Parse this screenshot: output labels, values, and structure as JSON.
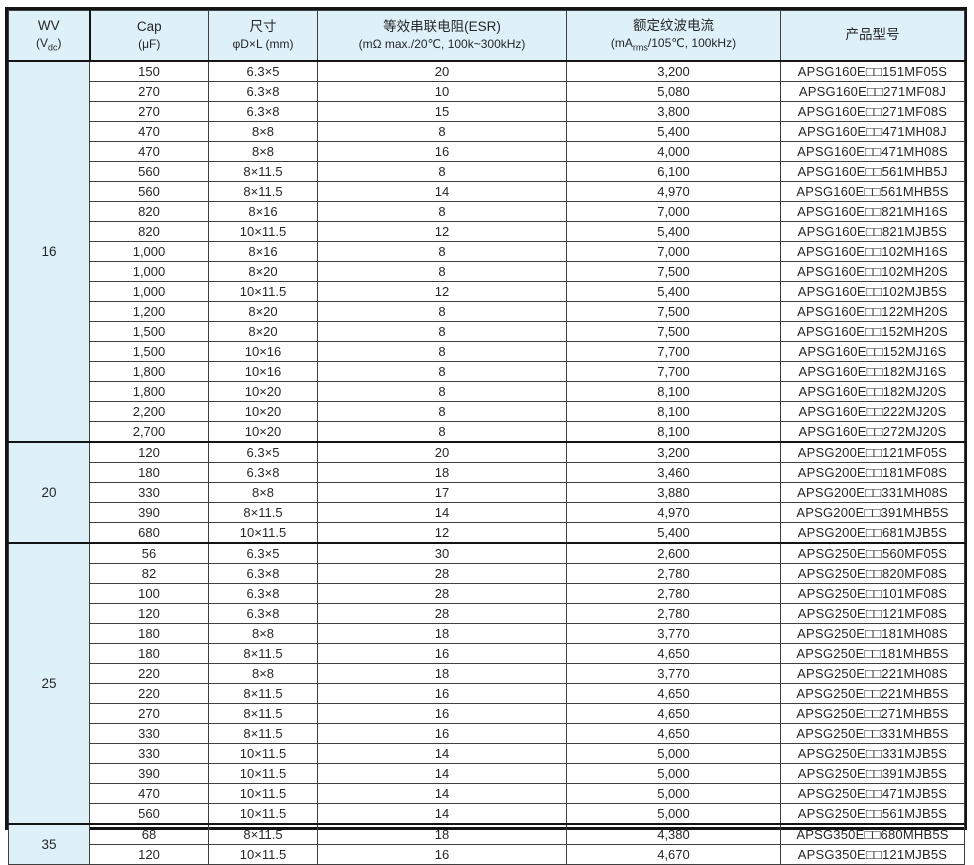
{
  "table": {
    "style": {
      "header_bg": "#def1f9",
      "wv_bg": "#def1f9",
      "border_color": "#141414",
      "grid_color": "#3f3f3f",
      "text_color": "#262626"
    },
    "header": {
      "wv": {
        "line1": "WV",
        "line2_pre": "(V",
        "line2_sub": "dc",
        "line2_post": ")"
      },
      "cap": {
        "line1": "Cap",
        "line2": "(μF)"
      },
      "size": {
        "line1": "尺寸",
        "line2": "φD×L (mm)"
      },
      "esr": {
        "line1": "等效串联电阻(ESR)",
        "line2": "(mΩ max./20℃, 100k~300kHz)"
      },
      "ripple": {
        "line1": "额定纹波电流",
        "line2_pre": "(mA",
        "line2_sub": "rms",
        "line2_post": "/105℃, 100kHz)"
      },
      "part": {
        "line1": "产品型号"
      }
    },
    "groups": [
      {
        "wv": "16",
        "rows": [
          {
            "cap": "150",
            "size": "6.3×5",
            "esr": "20",
            "ripple": "3,200",
            "part": "APSG160E□□151MF05S"
          },
          {
            "cap": "270",
            "size": "6.3×8",
            "esr": "10",
            "ripple": "5,080",
            "part": "APSG160E□□271MF08J"
          },
          {
            "cap": "270",
            "size": "6.3×8",
            "esr": "15",
            "ripple": "3,800",
            "part": "APSG160E□□271MF08S"
          },
          {
            "cap": "470",
            "size": "8×8",
            "esr": "8",
            "ripple": "5,400",
            "part": "APSG160E□□471MH08J"
          },
          {
            "cap": "470",
            "size": "8×8",
            "esr": "16",
            "ripple": "4,000",
            "part": "APSG160E□□471MH08S"
          },
          {
            "cap": "560",
            "size": "8×11.5",
            "esr": "8",
            "ripple": "6,100",
            "part": "APSG160E□□561MHB5J"
          },
          {
            "cap": "560",
            "size": "8×11.5",
            "esr": "14",
            "ripple": "4,970",
            "part": "APSG160E□□561MHB5S"
          },
          {
            "cap": "820",
            "size": "8×16",
            "esr": "8",
            "ripple": "7,000",
            "part": "APSG160E□□821MH16S"
          },
          {
            "cap": "820",
            "size": "10×11.5",
            "esr": "12",
            "ripple": "5,400",
            "part": "APSG160E□□821MJB5S"
          },
          {
            "cap": "1,000",
            "size": "8×16",
            "esr": "8",
            "ripple": "7,000",
            "part": "APSG160E□□102MH16S"
          },
          {
            "cap": "1,000",
            "size": "8×20",
            "esr": "8",
            "ripple": "7,500",
            "part": "APSG160E□□102MH20S"
          },
          {
            "cap": "1,000",
            "size": "10×11.5",
            "esr": "12",
            "ripple": "5,400",
            "part": "APSG160E□□102MJB5S"
          },
          {
            "cap": "1,200",
            "size": "8×20",
            "esr": "8",
            "ripple": "7,500",
            "part": "APSG160E□□122MH20S"
          },
          {
            "cap": "1,500",
            "size": "8×20",
            "esr": "8",
            "ripple": "7,500",
            "part": "APSG160E□□152MH20S"
          },
          {
            "cap": "1,500",
            "size": "10×16",
            "esr": "8",
            "ripple": "7,700",
            "part": "APSG160E□□152MJ16S"
          },
          {
            "cap": "1,800",
            "size": "10×16",
            "esr": "8",
            "ripple": "7,700",
            "part": "APSG160E□□182MJ16S"
          },
          {
            "cap": "1,800",
            "size": "10×20",
            "esr": "8",
            "ripple": "8,100",
            "part": "APSG160E□□182MJ20S"
          },
          {
            "cap": "2,200",
            "size": "10×20",
            "esr": "8",
            "ripple": "8,100",
            "part": "APSG160E□□222MJ20S"
          },
          {
            "cap": "2,700",
            "size": "10×20",
            "esr": "8",
            "ripple": "8,100",
            "part": "APSG160E□□272MJ20S"
          }
        ]
      },
      {
        "wv": "20",
        "rows": [
          {
            "cap": "120",
            "size": "6.3×5",
            "esr": "20",
            "ripple": "3,200",
            "part": "APSG200E□□121MF05S"
          },
          {
            "cap": "180",
            "size": "6.3×8",
            "esr": "18",
            "ripple": "3,460",
            "part": "APSG200E□□181MF08S"
          },
          {
            "cap": "330",
            "size": "8×8",
            "esr": "17",
            "ripple": "3,880",
            "part": "APSG200E□□331MH08S"
          },
          {
            "cap": "390",
            "size": "8×11.5",
            "esr": "14",
            "ripple": "4,970",
            "part": "APSG200E□□391MHB5S"
          },
          {
            "cap": "680",
            "size": "10×11.5",
            "esr": "12",
            "ripple": "5,400",
            "part": "APSG200E□□681MJB5S"
          }
        ]
      },
      {
        "wv": "25",
        "rows": [
          {
            "cap": "56",
            "size": "6.3×5",
            "esr": "30",
            "ripple": "2,600",
            "part": "APSG250E□□560MF05S"
          },
          {
            "cap": "82",
            "size": "6.3×8",
            "esr": "28",
            "ripple": "2,780",
            "part": "APSG250E□□820MF08S"
          },
          {
            "cap": "100",
            "size": "6.3×8",
            "esr": "28",
            "ripple": "2,780",
            "part": "APSG250E□□101MF08S"
          },
          {
            "cap": "120",
            "size": "6.3×8",
            "esr": "28",
            "ripple": "2,780",
            "part": "APSG250E□□121MF08S"
          },
          {
            "cap": "180",
            "size": "8×8",
            "esr": "18",
            "ripple": "3,770",
            "part": "APSG250E□□181MH08S"
          },
          {
            "cap": "180",
            "size": "8×11.5",
            "esr": "16",
            "ripple": "4,650",
            "part": "APSG250E□□181MHB5S"
          },
          {
            "cap": "220",
            "size": "8×8",
            "esr": "18",
            "ripple": "3,770",
            "part": "APSG250E□□221MH08S"
          },
          {
            "cap": "220",
            "size": "8×11.5",
            "esr": "16",
            "ripple": "4,650",
            "part": "APSG250E□□221MHB5S"
          },
          {
            "cap": "270",
            "size": "8×11.5",
            "esr": "16",
            "ripple": "4,650",
            "part": "APSG250E□□271MHB5S"
          },
          {
            "cap": "330",
            "size": "8×11.5",
            "esr": "16",
            "ripple": "4,650",
            "part": "APSG250E□□331MHB5S"
          },
          {
            "cap": "330",
            "size": "10×11.5",
            "esr": "14",
            "ripple": "5,000",
            "part": "APSG250E□□331MJB5S"
          },
          {
            "cap": "390",
            "size": "10×11.5",
            "esr": "14",
            "ripple": "5,000",
            "part": "APSG250E□□391MJB5S"
          },
          {
            "cap": "470",
            "size": "10×11.5",
            "esr": "14",
            "ripple": "5,000",
            "part": "APSG250E□□471MJB5S"
          },
          {
            "cap": "560",
            "size": "10×11.5",
            "esr": "14",
            "ripple": "5,000",
            "part": "APSG250E□□561MJB5S"
          }
        ]
      },
      {
        "wv": "35",
        "rows": [
          {
            "cap": "68",
            "size": "8×11.5",
            "esr": "18",
            "ripple": "4,380",
            "part": "APSG350E□□680MHB5S"
          },
          {
            "cap": "120",
            "size": "10×11.5",
            "esr": "16",
            "ripple": "4,670",
            "part": "APSG350E□□121MJB5S"
          }
        ]
      }
    ]
  }
}
